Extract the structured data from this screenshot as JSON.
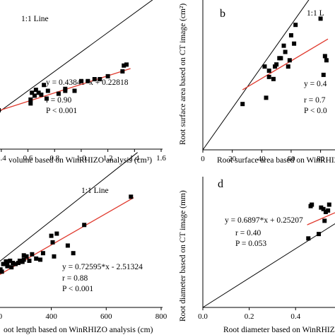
{
  "chart_data": [
    {
      "type": "scatter",
      "panel_label": "",
      "xlabel": "volume based on WinRHIZO analysis  (cm³)",
      "ylabel": "",
      "xlim": [
        0.3,
        1.6
      ],
      "ylim": [
        0,
        1.6
      ],
      "x_ticks": [
        "0.4",
        "0.6",
        "0.8",
        "1.0",
        "1.2",
        "1.4",
        "1.6"
      ],
      "line_label": "1:1 Line",
      "fit": {
        "slope": 0.43841,
        "intercept": 0.22818,
        "x_range": [
          0.38,
          1.37
        ]
      },
      "equation": "y = 0.43841*x + 0.22818",
      "r_text": "r = 0.90",
      "p_text": "P < 0.001",
      "points": [
        [
          0.38,
          0.4
        ],
        [
          0.62,
          0.47
        ],
        [
          0.62,
          0.51
        ],
        [
          0.63,
          0.58
        ],
        [
          0.65,
          0.55
        ],
        [
          0.66,
          0.61
        ],
        [
          0.68,
          0.58
        ],
        [
          0.7,
          0.56
        ],
        [
          0.72,
          0.66
        ],
        [
          0.74,
          0.52
        ],
        [
          0.75,
          0.6
        ],
        [
          0.83,
          0.57
        ],
        [
          0.88,
          0.6
        ],
        [
          0.88,
          0.62
        ],
        [
          0.95,
          0.6
        ],
        [
          1.0,
          0.7
        ],
        [
          1.05,
          0.7
        ],
        [
          1.1,
          0.72
        ],
        [
          1.14,
          0.72
        ],
        [
          1.2,
          0.75
        ],
        [
          1.31,
          0.8
        ],
        [
          1.32,
          0.86
        ],
        [
          1.34,
          0.87
        ]
      ]
    },
    {
      "type": "scatter",
      "panel_label": "b",
      "xlabel": "Root surface area based on WinRHIZO",
      "ylabel": "Root surface area based on CT image (cm²)",
      "xlim": [
        0,
        85
      ],
      "ylim": [
        0,
        75
      ],
      "x_ticks": [
        "0",
        "20",
        "40",
        "60",
        "80"
      ],
      "line_label": "1:1 L",
      "fit": {
        "slope": 0.42,
        "intercept": 17.5,
        "x_range": [
          27,
          85
        ]
      },
      "equation": "y = 0.4",
      "r_text": "r = 0.7",
      "p_text": "P < 0.0",
      "points": [
        [
          27,
          22
        ],
        [
          42,
          40
        ],
        [
          43,
          25
        ],
        [
          45,
          35
        ],
        [
          45,
          38
        ],
        [
          48,
          34
        ],
        [
          49,
          40
        ],
        [
          50,
          41
        ],
        [
          52,
          44
        ],
        [
          53,
          44
        ],
        [
          55,
          50
        ],
        [
          56,
          47
        ],
        [
          58,
          40
        ],
        [
          59,
          43
        ],
        [
          60,
          55
        ],
        [
          62,
          51
        ],
        [
          63,
          60
        ],
        [
          80,
          63
        ],
        [
          82,
          36
        ],
        [
          83,
          45
        ],
        [
          84,
          43
        ]
      ]
    },
    {
      "type": "scatter",
      "panel_label": "",
      "xlabel": "oot length based on WinRHIZO analysis (cm)",
      "ylabel": "",
      "xlim": [
        100,
        800
      ],
      "ylim": [
        0,
        700
      ],
      "x_ticks": [
        "200",
        "400",
        "600",
        "800"
      ],
      "line_label": "1:1 Line",
      "fit": {
        "slope": 0.72595,
        "intercept": -2.51324,
        "x_range": [
          100,
          700
        ]
      },
      "equation": "y = 0.72595*x - 2.51324",
      "r_text": "r = 0.88",
      "p_text": "P < 0.001",
      "points": [
        [
          120,
          138
        ],
        [
          180,
          145
        ],
        [
          190,
          180
        ],
        [
          200,
          190
        ],
        [
          215,
          175
        ],
        [
          220,
          165
        ],
        [
          225,
          200
        ],
        [
          235,
          212
        ],
        [
          240,
          200
        ],
        [
          240,
          190
        ],
        [
          250,
          215
        ],
        [
          255,
          185
        ],
        [
          260,
          205
        ],
        [
          270,
          200
        ],
        [
          280,
          205
        ],
        [
          285,
          215
        ],
        [
          295,
          210
        ],
        [
          300,
          220
        ],
        [
          300,
          240
        ],
        [
          310,
          235
        ],
        [
          320,
          215
        ],
        [
          330,
          245
        ],
        [
          345,
          225
        ],
        [
          360,
          220
        ],
        [
          370,
          250
        ],
        [
          400,
          330
        ],
        [
          405,
          300
        ],
        [
          410,
          235
        ],
        [
          420,
          340
        ],
        [
          460,
          285
        ],
        [
          480,
          250
        ],
        [
          520,
          380
        ],
        [
          690,
          510
        ]
      ]
    },
    {
      "type": "scatter",
      "panel_label": "d",
      "xlabel": "Root diameter based on WinRHIZO",
      "ylabel": "Root diameter based on CT image (mm)",
      "xlim": [
        0,
        0.57
      ],
      "ylim": [
        0,
        0.9
      ],
      "x_ticks": [
        "0.0",
        "0.2",
        "0.4"
      ],
      "line_label": "",
      "fit": {
        "slope": 0.6897,
        "intercept": 0.25207,
        "x_range": [
          0.45,
          0.57
        ]
      },
      "equation": "y = 0.6897*x + 0.25207",
      "r_text": "r = 0.40",
      "p_text": "P = 0.053",
      "points": [
        [
          0.455,
          0.47
        ],
        [
          0.465,
          0.69
        ],
        [
          0.47,
          0.7
        ],
        [
          0.5,
          0.5
        ],
        [
          0.51,
          0.68
        ],
        [
          0.52,
          0.67
        ],
        [
          0.525,
          0.59
        ],
        [
          0.53,
          0.65
        ],
        [
          0.54,
          0.66
        ],
        [
          0.545,
          0.7
        ]
      ]
    }
  ]
}
